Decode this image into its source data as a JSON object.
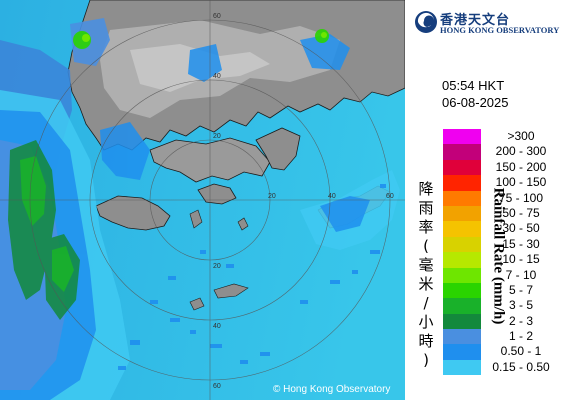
{
  "header": {
    "org_name_zh": "香港天文台",
    "org_name_en": "HONG KONG OBSERVATORY",
    "logo_icon": "hko-swirl-logo"
  },
  "timestamp": {
    "time": "05:54 HKT",
    "date": "06-08-2025"
  },
  "legend": {
    "title_zh": "降雨率(毫米/小時)",
    "title_en": "Rainfall Rate (mm/h)",
    "classes": [
      {
        "label": ">300",
        "color": "#f000f0"
      },
      {
        "label": "200 - 300",
        "color": "#c2007a"
      },
      {
        "label": "150 - 200",
        "color": "#e0003a"
      },
      {
        "label": "100 - 150",
        "color": "#ff2400"
      },
      {
        "label": "75 - 100",
        "color": "#ff7a00"
      },
      {
        "label": "50 - 75",
        "color": "#f2a200"
      },
      {
        "label": "30 - 50",
        "color": "#f5c300"
      },
      {
        "label": "15 - 30",
        "color": "#d8d200"
      },
      {
        "label": "10 - 15",
        "color": "#b6e800"
      },
      {
        "label": "7 - 10",
        "color": "#6ee600"
      },
      {
        "label": "5 - 7",
        "color": "#2ad400"
      },
      {
        "label": "3 - 5",
        "color": "#19b12a"
      },
      {
        "label": "2 - 3",
        "color": "#13893c"
      },
      {
        "label": "1 - 2",
        "color": "#4a8fe0"
      },
      {
        "label": "0.50 - 1",
        "color": "#1f8fee"
      },
      {
        "label": "0.15 - 0.50",
        "color": "#3fc9f2"
      }
    ]
  },
  "map": {
    "copyright": "© Hong Kong Observatory",
    "range_ring_labels": [
      "20",
      "40",
      "60",
      "20",
      "40",
      "60",
      "20",
      "40",
      "60"
    ],
    "colors": {
      "sea": "#33bfe6",
      "land": "#8f8f8f",
      "coast": "#1a1a1a"
    }
  }
}
